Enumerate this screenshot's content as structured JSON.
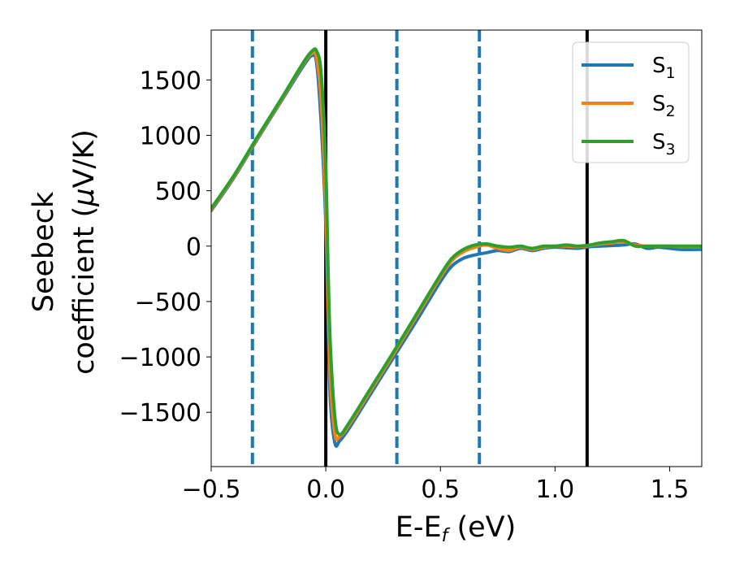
{
  "chart_data": {
    "type": "line",
    "xlabel": {
      "main": "E-E",
      "sub": "f",
      "suffix": " (eV)"
    },
    "ylabel": {
      "line1": "Seebeck",
      "line2_pre": "coefficient  (",
      "mu": "μ",
      "line2_post": "V/K)"
    },
    "xlim": [
      -0.5,
      1.64
    ],
    "ylim": [
      -1990,
      1950
    ],
    "x_ticks": [
      {
        "value": -0.5,
        "label": "−0.5"
      },
      {
        "value": 0.0,
        "label": "0.0"
      },
      {
        "value": 0.5,
        "label": "0.5"
      },
      {
        "value": 1.0,
        "label": "1.0"
      },
      {
        "value": 1.5,
        "label": "1.5"
      }
    ],
    "y_ticks": [
      {
        "value": 1500,
        "label": "1500"
      },
      {
        "value": 1000,
        "label": "1000"
      },
      {
        "value": 500,
        "label": "500"
      },
      {
        "value": 0,
        "label": "0"
      },
      {
        "value": -500,
        "label": "−500"
      },
      {
        "value": -1000,
        "label": "−1000"
      },
      {
        "value": -1500,
        "label": "−1500"
      }
    ],
    "grid": false,
    "legend_position": "top-right",
    "vlines": [
      {
        "x": -0.32,
        "style": "dashed",
        "color": "#1f77b4"
      },
      {
        "x": 0.0,
        "style": "solid",
        "color": "#000000"
      },
      {
        "x": 0.31,
        "style": "dashed",
        "color": "#1f77b4"
      },
      {
        "x": 0.67,
        "style": "dashed",
        "color": "#1f77b4"
      },
      {
        "x": 1.14,
        "style": "solid",
        "color": "#000000"
      }
    ],
    "series": [
      {
        "name": "S",
        "sub": "1",
        "color": "#1f77b4",
        "x": [
          -0.5,
          -0.4,
          -0.3,
          -0.2,
          -0.1,
          -0.06,
          -0.04,
          -0.02,
          0.0,
          0.01,
          0.02,
          0.04,
          0.06,
          0.1,
          0.2,
          0.3,
          0.4,
          0.5,
          0.55,
          0.6,
          0.65,
          0.7,
          0.75,
          0.8,
          0.85,
          0.9,
          0.95,
          1.0,
          1.05,
          1.1,
          1.15,
          1.2,
          1.25,
          1.3,
          1.35,
          1.4,
          1.45,
          1.5,
          1.55,
          1.64
        ],
        "y": [
          320,
          620,
          960,
          1290,
          1620,
          1720,
          1650,
          1100,
          200,
          -700,
          -1400,
          -1780,
          -1760,
          -1650,
          -1320,
          -990,
          -660,
          -320,
          -180,
          -110,
          -80,
          -60,
          -40,
          -50,
          -20,
          -40,
          -20,
          -10,
          -15,
          -20,
          -5,
          0,
          5,
          10,
          20,
          -20,
          -10,
          -20,
          -30,
          -30
        ]
      },
      {
        "name": "S",
        "sub": "2",
        "color": "#ff7f0e",
        "x": [
          -0.5,
          -0.4,
          -0.3,
          -0.2,
          -0.1,
          -0.06,
          -0.04,
          -0.02,
          0.0,
          0.01,
          0.02,
          0.04,
          0.06,
          0.1,
          0.2,
          0.3,
          0.4,
          0.5,
          0.55,
          0.6,
          0.65,
          0.7,
          0.75,
          0.8,
          0.85,
          0.9,
          0.95,
          1.0,
          1.05,
          1.1,
          1.15,
          1.2,
          1.25,
          1.3,
          1.35,
          1.4,
          1.45,
          1.5,
          1.55,
          1.64
        ],
        "y": [
          330,
          630,
          970,
          1300,
          1640,
          1740,
          1700,
          1300,
          350,
          -500,
          -1200,
          -1700,
          -1720,
          -1620,
          -1290,
          -960,
          -620,
          -280,
          -130,
          -50,
          -10,
          10,
          -20,
          -40,
          -10,
          -30,
          -10,
          0,
          0,
          -5,
          5,
          20,
          30,
          40,
          10,
          0,
          0,
          0,
          -5,
          -5
        ]
      },
      {
        "name": "S",
        "sub": "3",
        "color": "#2ca02c",
        "x": [
          -0.5,
          -0.4,
          -0.3,
          -0.2,
          -0.1,
          -0.06,
          -0.04,
          -0.02,
          0.0,
          0.01,
          0.02,
          0.04,
          0.06,
          0.1,
          0.2,
          0.3,
          0.4,
          0.5,
          0.55,
          0.6,
          0.65,
          0.7,
          0.75,
          0.8,
          0.85,
          0.9,
          0.95,
          1.0,
          1.05,
          1.1,
          1.15,
          1.2,
          1.25,
          1.3,
          1.35,
          1.4,
          1.45,
          1.5,
          1.55,
          1.64
        ],
        "y": [
          340,
          640,
          980,
          1310,
          1650,
          1760,
          1760,
          1550,
          700,
          -200,
          -900,
          -1550,
          -1700,
          -1600,
          -1270,
          -940,
          -600,
          -260,
          -110,
          -30,
          10,
          20,
          0,
          -10,
          0,
          -20,
          0,
          0,
          10,
          0,
          10,
          30,
          40,
          50,
          0,
          0,
          0,
          0,
          0,
          0
        ]
      }
    ]
  }
}
